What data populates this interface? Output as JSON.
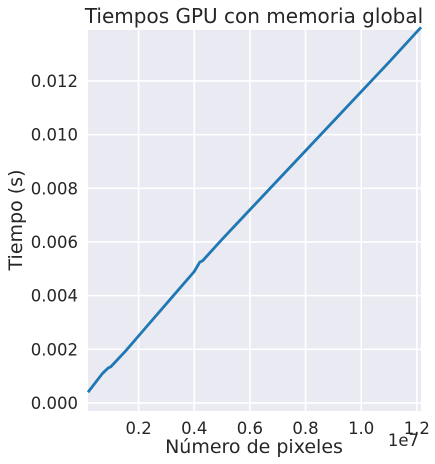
{
  "chart_data": {
    "type": "line",
    "title": "Tiempos GPU con memoria global",
    "xlabel": "Número de pixeles",
    "ylabel": "Tiempo (s)",
    "x_offset_text": "1e7",
    "xlim": [
      0.018,
      1.215
    ],
    "ylim": [
      -0.0003,
      0.0139
    ],
    "x_ticks": [
      0.2,
      0.4,
      0.6,
      0.8,
      1.0,
      1.2
    ],
    "x_tick_labels": [
      "0.2",
      "0.4",
      "0.6",
      "0.8",
      "1.0",
      "1.2"
    ],
    "y_ticks": [
      0.0,
      0.002,
      0.004,
      0.006,
      0.008,
      0.01,
      0.012
    ],
    "y_tick_labels": [
      "0.000",
      "0.002",
      "0.004",
      "0.006",
      "0.008",
      "0.010",
      "0.012"
    ],
    "grid": true,
    "series": [
      {
        "color": "#1f77b4",
        "x": [
          0.018,
          0.07,
          0.09,
          0.1,
          0.15,
          0.2,
          0.25,
          0.3,
          0.35,
          0.4,
          0.42,
          0.43,
          0.5,
          0.6,
          0.7,
          0.8,
          0.9,
          1.0,
          1.1,
          1.215
        ],
        "y": [
          0.0004,
          0.0011,
          0.0013,
          0.00135,
          0.0019,
          0.0025,
          0.0031,
          0.0037,
          0.0043,
          0.0049,
          0.00525,
          0.0053,
          0.0061,
          0.0072,
          0.0083,
          0.0094,
          0.0105,
          0.0116,
          0.0127,
          0.014
        ]
      }
    ]
  }
}
